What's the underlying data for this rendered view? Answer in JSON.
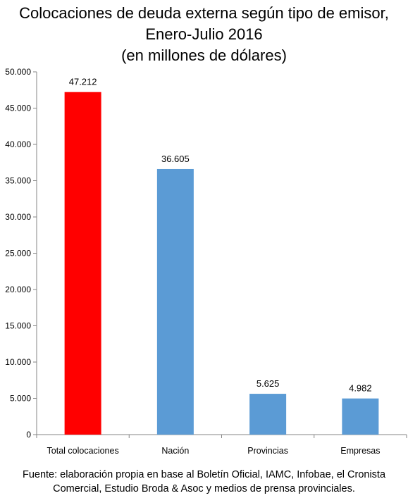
{
  "title_lines": [
    "Colocaciones de deuda externa según tipo de emisor,",
    "Enero-Julio 2016",
    "(en millones de dólares)"
  ],
  "source_lines": [
    "Fuente: elaboración propia en base al Boletín Oficial, IAMC, Infobae, el Cronista",
    "Comercial, Estudio Broda & Asoc y medios de prensa provinciales."
  ],
  "colors": {
    "highlight": "#FF0000",
    "series": "#5B9BD5",
    "axis": "#868686"
  },
  "chart_data": {
    "type": "bar",
    "title": "Colocaciones de deuda externa según tipo de emisor, Enero-Julio 2016 (en millones de dólares)",
    "categories": [
      "Total colocaciones",
      "Nación",
      "Provincias",
      "Empresas"
    ],
    "values": [
      47212,
      36605,
      5625,
      4982
    ],
    "value_labels": [
      "47.212",
      "36.605",
      "5.625",
      "4.982"
    ],
    "bar_colors": [
      "#FF0000",
      "#5B9BD5",
      "#5B9BD5",
      "#5B9BD5"
    ],
    "ylim": [
      0,
      50000
    ],
    "yticks": [
      0,
      5000,
      10000,
      15000,
      20000,
      25000,
      30000,
      35000,
      40000,
      45000,
      50000
    ],
    "ytick_labels": [
      "0",
      "5.000",
      "10.000",
      "15.000",
      "20.000",
      "25.000",
      "30.000",
      "35.000",
      "40.000",
      "45.000",
      "50.000"
    ],
    "grid": false,
    "legend": "none"
  }
}
